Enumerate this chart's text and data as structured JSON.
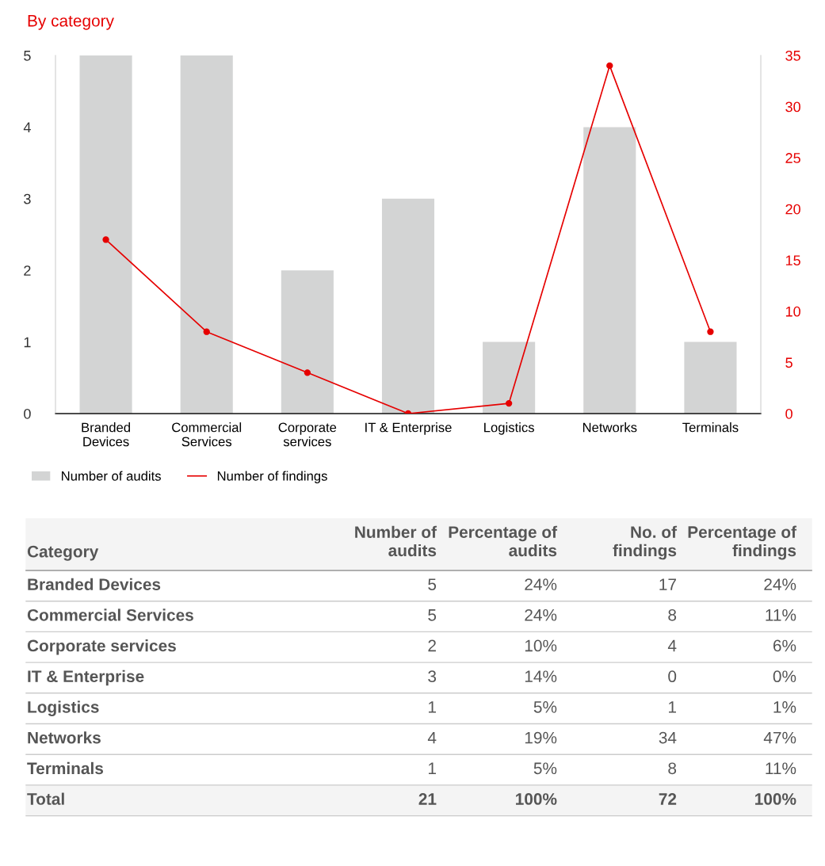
{
  "chart_data": [
    {
      "type": "bar",
      "title": "By category",
      "categories": [
        "Branded Devices",
        "Commercial Services",
        "Corporate services",
        "IT & Enterprise",
        "Logistics",
        "Networks",
        "Terminals"
      ],
      "series": [
        {
          "name": "Number of audits",
          "color": "#d3d4d4",
          "values": [
            5,
            5,
            2,
            3,
            1,
            4,
            1
          ]
        },
        {
          "name": "Number of findings",
          "type": "line",
          "axis": "y2",
          "color": "#e60000",
          "marker": "circle",
          "values": [
            17,
            8,
            4,
            0,
            1,
            34,
            8
          ]
        }
      ],
      "ylim": [
        0,
        5
      ],
      "yticks": [
        0,
        1,
        2,
        3,
        4,
        5
      ],
      "y2lim": [
        0,
        35
      ],
      "y2ticks": [
        0,
        5,
        10,
        15,
        20,
        25,
        30,
        35
      ],
      "grid": false,
      "legend": "bottom"
    },
    {
      "type": "other",
      "annotations": [
        "Category",
        "Number of audits",
        "Percentage of audits",
        "No. of findings",
        "Percentage of findings",
        "Branded Devices",
        "5",
        "24%",
        "17",
        "24%",
        "Commercial Services",
        "5",
        "24%",
        "8",
        "11%",
        "Corporate services",
        "2",
        "10%",
        "4",
        "6%",
        "IT & Enterprise",
        "3",
        "14%",
        "0",
        "0%",
        "Logistics",
        "1",
        "5%",
        "1",
        "1%",
        "Networks",
        "4",
        "19%",
        "34",
        "47%",
        "Terminals",
        "1",
        "5%",
        "8",
        "11%",
        "Total",
        "21",
        "100%",
        "72",
        "100%"
      ]
    }
  ]
}
